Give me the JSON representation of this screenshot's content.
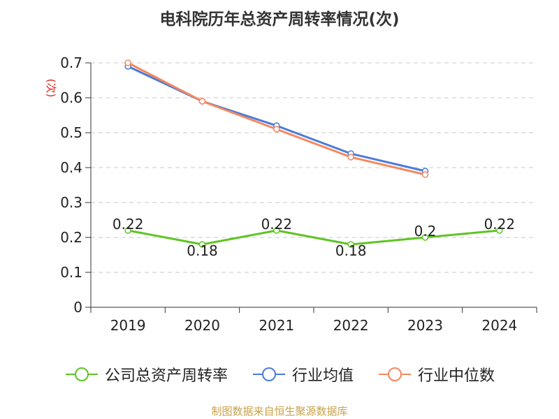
{
  "chart_data": {
    "type": "line",
    "title": "电科院历年总资产周转率情况(次)",
    "ylabel": "(次)",
    "categories": [
      "2019",
      "2020",
      "2021",
      "2022",
      "2023",
      "2024"
    ],
    "ylim": [
      0,
      0.7
    ],
    "yticks": [
      "0",
      "0.1",
      "0.2",
      "0.3",
      "0.4",
      "0.5",
      "0.6",
      "0.7"
    ],
    "grid": true,
    "legend_position": "bottom",
    "series": [
      {
        "name": "公司总资产周转率",
        "color": "#5ec424",
        "values": [
          0.22,
          0.18,
          0.22,
          0.18,
          0.2,
          0.22
        ],
        "labels": [
          "0.22",
          "0.18",
          "0.22",
          "0.18",
          "0.2",
          "0.22"
        ]
      },
      {
        "name": "行业均值",
        "color": "#4a7bd9",
        "values": [
          0.69,
          0.59,
          0.52,
          0.44,
          0.39,
          null
        ]
      },
      {
        "name": "行业中位数",
        "color": "#f5875f",
        "values": [
          0.7,
          0.59,
          0.51,
          0.43,
          0.38,
          null
        ]
      }
    ]
  },
  "footer": {
    "source": "制图数据来自恒生聚源数据库",
    "color": "#c8a24a"
  }
}
